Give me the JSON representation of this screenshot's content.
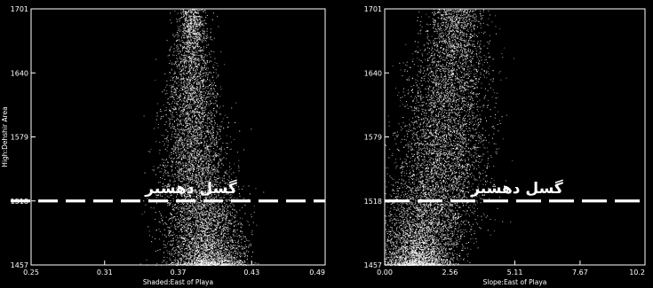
{
  "chart_data": [
    {
      "type": "scatter",
      "xlabel": "Shaded:East of Playa",
      "ylabel": "High:Dehshir Area",
      "xlim": [
        0.25,
        0.49
      ],
      "ylim": [
        1457,
        1701
      ],
      "x_ticks": [
        "0.25",
        "0.31",
        "0.37",
        "0.43",
        "0.49"
      ],
      "x_tick_values": [
        0.25,
        0.31,
        0.37,
        0.43,
        0.49
      ],
      "y_ticks": [
        "1457",
        "1518",
        "1579",
        "1640",
        "1701"
      ],
      "y_tick_values": [
        1457,
        1518,
        1579,
        1640,
        1701
      ],
      "grid": false,
      "point_color": "#ffffff",
      "background": "#000000",
      "cloud_profile": [
        {
          "y": 1457,
          "x_center": 0.395,
          "x_spread": 0.028
        },
        {
          "y": 1478,
          "x_center": 0.392,
          "x_spread": 0.03
        },
        {
          "y": 1500,
          "x_center": 0.389,
          "x_spread": 0.03
        },
        {
          "y": 1530,
          "x_center": 0.385,
          "x_spread": 0.027
        },
        {
          "y": 1570,
          "x_center": 0.383,
          "x_spread": 0.024
        },
        {
          "y": 1610,
          "x_center": 0.381,
          "x_spread": 0.02
        },
        {
          "y": 1650,
          "x_center": 0.381,
          "x_spread": 0.016
        },
        {
          "y": 1690,
          "x_center": 0.381,
          "x_spread": 0.01
        }
      ],
      "fault_line": {
        "y": 1518,
        "label": "گسل دهشیر",
        "color": "#ffffff"
      }
    },
    {
      "type": "scatter",
      "xlabel": "Slope:East of Playa",
      "ylabel": "",
      "xlim": [
        0.0,
        10.22
      ],
      "ylim": [
        1457,
        1701
      ],
      "x_ticks": [
        "0.00",
        "2.56",
        "5.11",
        "7.67",
        "10.2"
      ],
      "x_tick_values": [
        0.0,
        2.56,
        5.11,
        7.67,
        10.22
      ],
      "y_ticks": [
        "1457",
        "1518",
        "1579",
        "1640",
        "1701"
      ],
      "y_tick_values": [
        1457,
        1518,
        1579,
        1640,
        1701
      ],
      "grid": false,
      "point_color": "#ffffff",
      "background": "#000000",
      "cloud_profile": [
        {
          "y": 1457,
          "x_center": 1.2,
          "x_spread": 1.3
        },
        {
          "y": 1490,
          "x_center": 1.5,
          "x_spread": 1.6
        },
        {
          "y": 1530,
          "x_center": 2.0,
          "x_spread": 1.7
        },
        {
          "y": 1570,
          "x_center": 2.3,
          "x_spread": 1.6
        },
        {
          "y": 1610,
          "x_center": 2.4,
          "x_spread": 1.5
        },
        {
          "y": 1650,
          "x_center": 2.6,
          "x_spread": 1.3
        },
        {
          "y": 1690,
          "x_center": 2.8,
          "x_spread": 1.0
        }
      ],
      "fault_line": {
        "y": 1518,
        "label": "گسل دهشیر",
        "color": "#ffffff"
      }
    }
  ]
}
